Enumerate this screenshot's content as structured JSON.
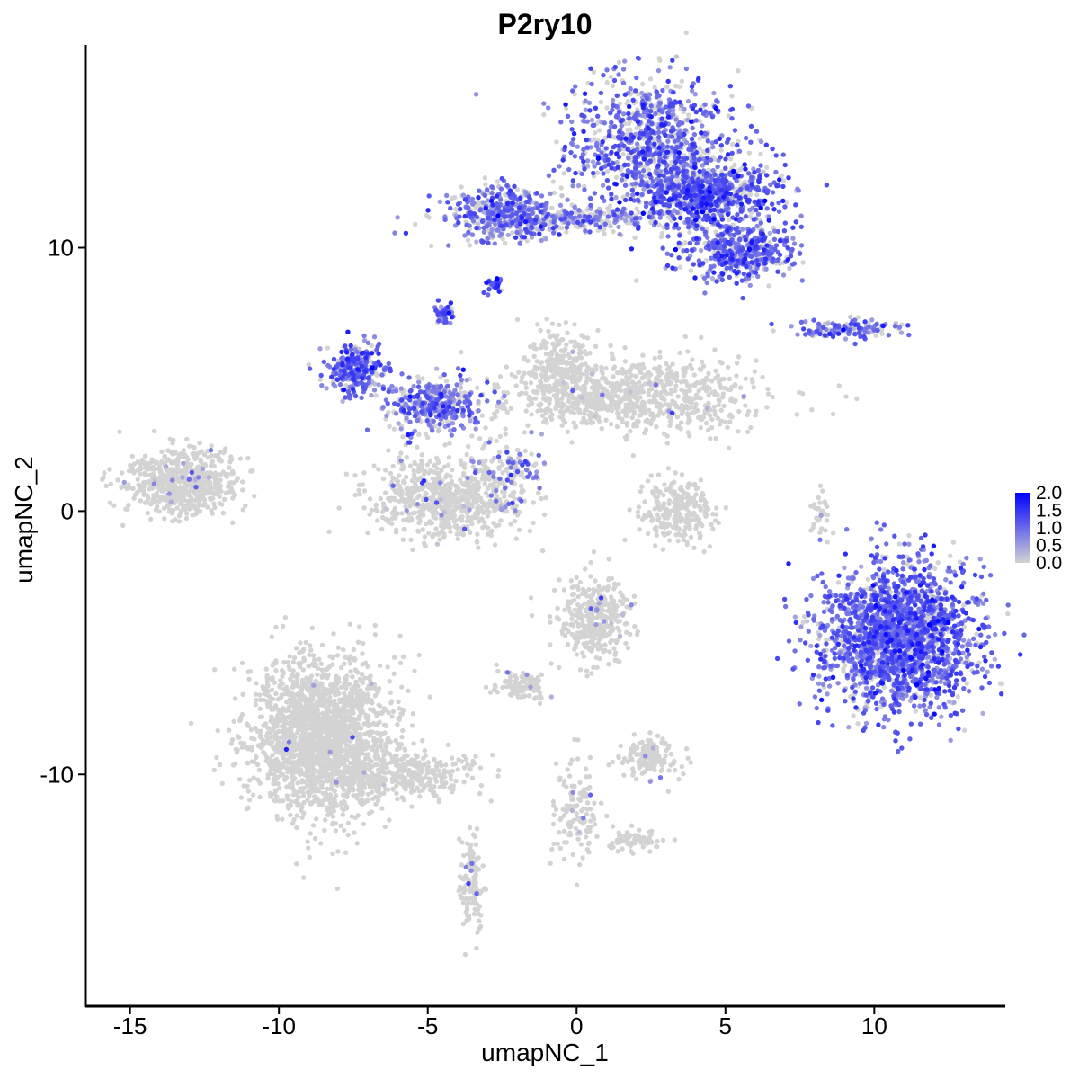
{
  "chart_data": {
    "type": "scatter",
    "title": "P2ry10",
    "xlabel": "umapNC_1",
    "ylabel": "umapNC_2",
    "xlim": [
      -16.5,
      14.4
    ],
    "ylim": [
      -18.8,
      17.7
    ],
    "x_ticks": [
      "-15",
      "-10",
      "-5",
      "0",
      "5",
      "10"
    ],
    "x_tick_values": [
      -15,
      -10,
      -5,
      0,
      5,
      10
    ],
    "y_ticks": [
      "-10",
      "0",
      "10"
    ],
    "y_tick_values": [
      -10,
      0,
      10
    ],
    "grid": false,
    "color_scale": {
      "low_color": "#d3d3d3",
      "high_color": "#0000ff",
      "min": 0,
      "max": 2.0,
      "legend_labels": [
        "2.0",
        "1.5",
        "1.0",
        "0.5",
        "0.0"
      ],
      "legend_values": [
        2.0,
        1.5,
        1.0,
        0.5,
        0.0
      ],
      "legend_placement": "right"
    },
    "clusters": [
      {
        "id": "top-blob",
        "cx": 2.5,
        "cy": 14.0,
        "sx": 1.4,
        "sy": 1.3,
        "n": 900,
        "expr_frac": 0.7,
        "expr_mean": 1.0
      },
      {
        "id": "top-right-arm",
        "cx": 4.5,
        "cy": 12.0,
        "sx": 1.2,
        "sy": 0.6,
        "n": 700,
        "expr_frac": 0.75,
        "expr_mean": 1.1
      },
      {
        "id": "top-right-lobe",
        "cx": 5.4,
        "cy": 9.8,
        "sx": 0.9,
        "sy": 0.5,
        "n": 450,
        "expr_frac": 0.75,
        "expr_mean": 1.0
      },
      {
        "id": "top-left-lobe",
        "cx": -2.5,
        "cy": 11.3,
        "sx": 1.0,
        "sy": 0.5,
        "n": 450,
        "expr_frac": 0.7,
        "expr_mean": 0.9
      },
      {
        "id": "top-bridge",
        "cx": 0.3,
        "cy": 11.1,
        "sx": 1.2,
        "sy": 0.25,
        "n": 200,
        "expr_frac": 0.5,
        "expr_mean": 0.8
      },
      {
        "id": "top-left-tip",
        "cx": -2.7,
        "cy": 8.6,
        "sx": 0.15,
        "sy": 0.15,
        "n": 30,
        "expr_frac": 0.7,
        "expr_mean": 1.3
      },
      {
        "id": "mid-right-strand",
        "cx": 9.0,
        "cy": 6.9,
        "sx": 0.9,
        "sy": 0.18,
        "n": 140,
        "expr_frac": 0.6,
        "expr_mean": 0.9
      },
      {
        "id": "left-purple-arm",
        "cx": -7.4,
        "cy": 5.4,
        "sx": 0.5,
        "sy": 0.5,
        "n": 300,
        "expr_frac": 0.8,
        "expr_mean": 1.0
      },
      {
        "id": "mid-purple-body",
        "cx": -4.8,
        "cy": 4.0,
        "sx": 0.8,
        "sy": 0.5,
        "n": 350,
        "expr_frac": 0.7,
        "expr_mean": 0.9
      },
      {
        "id": "mid-purple-stalk",
        "cx": -4.4,
        "cy": 7.5,
        "sx": 0.2,
        "sy": 0.2,
        "n": 40,
        "expr_frac": 0.8,
        "expr_mean": 1.0
      },
      {
        "id": "central-grey-right",
        "cx": 1.8,
        "cy": 4.4,
        "sx": 2.2,
        "sy": 0.7,
        "n": 800,
        "expr_frac": 0.02,
        "expr_mean": 0.6
      },
      {
        "id": "central-grey-upper",
        "cx": -0.5,
        "cy": 5.3,
        "sx": 0.6,
        "sy": 0.8,
        "n": 250,
        "expr_frac": 0.02,
        "expr_mean": 0.6
      },
      {
        "id": "central-grey-left-lobe",
        "cx": -4.3,
        "cy": 0.5,
        "sx": 1.3,
        "sy": 0.8,
        "n": 700,
        "expr_frac": 0.03,
        "expr_mean": 0.6
      },
      {
        "id": "central-diag-strand",
        "cx": -2.2,
        "cy": 1.5,
        "sx": 0.6,
        "sy": 0.6,
        "n": 100,
        "expr_frac": 0.4,
        "expr_mean": 0.8
      },
      {
        "id": "left-grey-blob",
        "cx": -13.2,
        "cy": 1.1,
        "sx": 1.0,
        "sy": 0.6,
        "n": 600,
        "expr_frac": 0.02,
        "expr_mean": 0.6
      },
      {
        "id": "mid-grey-small",
        "cx": 3.3,
        "cy": 0.0,
        "sx": 0.6,
        "sy": 0.6,
        "n": 250,
        "expr_frac": 0.01,
        "expr_mean": 0.5
      },
      {
        "id": "right-big-blob",
        "cx": 10.8,
        "cy": -4.8,
        "sx": 1.3,
        "sy": 1.4,
        "n": 2000,
        "expr_frac": 0.85,
        "expr_mean": 1.0
      },
      {
        "id": "lower-mid-grey",
        "cx": 0.6,
        "cy": -4.1,
        "sx": 0.6,
        "sy": 0.8,
        "n": 350,
        "expr_frac": 0.04,
        "expr_mean": 0.7
      },
      {
        "id": "lower-mid-branch",
        "cx": -1.8,
        "cy": -6.6,
        "sx": 0.4,
        "sy": 0.3,
        "n": 90,
        "expr_frac": 0.05,
        "expr_mean": 0.7
      },
      {
        "id": "bottom-left-big",
        "cx": -8.6,
        "cy": -8.6,
        "sx": 1.2,
        "sy": 1.5,
        "n": 2000,
        "expr_frac": 0.003,
        "expr_mean": 0.6
      },
      {
        "id": "bottom-left-tail",
        "cx": -5.7,
        "cy": -10.0,
        "sx": 1.3,
        "sy": 0.4,
        "n": 300,
        "expr_frac": 0.01,
        "expr_mean": 0.6
      },
      {
        "id": "bottom-mid-right-blob",
        "cx": 2.5,
        "cy": -9.4,
        "sx": 0.5,
        "sy": 0.4,
        "n": 150,
        "expr_frac": 0.05,
        "expr_mean": 0.8
      },
      {
        "id": "bottom-mid-strand",
        "cx": 0.0,
        "cy": -11.3,
        "sx": 0.4,
        "sy": 0.9,
        "n": 130,
        "expr_frac": 0.05,
        "expr_mean": 0.8
      },
      {
        "id": "bottom-mid-tail",
        "cx": 2.0,
        "cy": -12.5,
        "sx": 0.5,
        "sy": 0.2,
        "n": 70,
        "expr_frac": 0.01,
        "expr_mean": 0.6
      },
      {
        "id": "bottom-vertical-strand",
        "cx": -3.5,
        "cy": -14.2,
        "sx": 0.2,
        "sy": 1.0,
        "n": 120,
        "expr_frac": 0.05,
        "expr_mean": 0.8
      },
      {
        "id": "right-small-strand",
        "cx": 8.2,
        "cy": -0.2,
        "sx": 0.15,
        "sy": 0.5,
        "n": 30,
        "expr_frac": 0.05,
        "expr_mean": 0.6
      }
    ]
  }
}
